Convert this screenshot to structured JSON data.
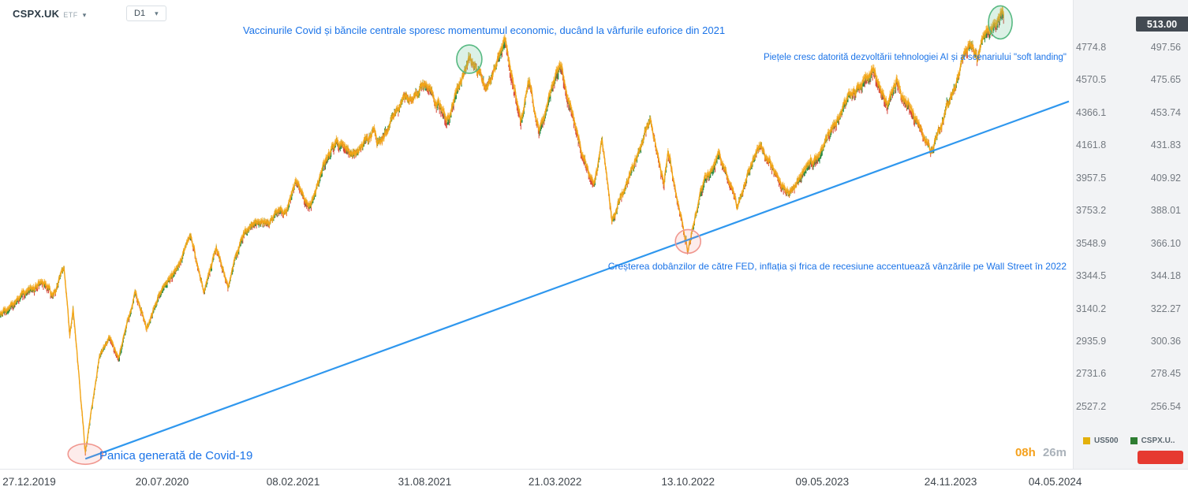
{
  "header": {
    "symbol": "CSPX.UK",
    "instrument_type": "ETF",
    "timeframe": "D1"
  },
  "annotations": {
    "peak_2021": "Vaccinurile Covid și băncile centrale sporesc momentumul economic, ducând la vârfurile euforice din 2021",
    "ai_rally": "Piețele cresc datorită dezvoltării tehnologiei AI și a scenariului \"soft landing\"",
    "fed_2022": "Creșterea dobânzilor de către FED, inflația și frica de recesiune accentuează vânzările pe Wall Street în 2022",
    "covid_panic": "Panica generată de Covid-19"
  },
  "price_axis": {
    "current_price": "513.00",
    "rows": [
      {
        "us500": "4774.8",
        "cspx": "497.56"
      },
      {
        "us500": "4570.5",
        "cspx": "475.65"
      },
      {
        "us500": "4366.1",
        "cspx": "453.74"
      },
      {
        "us500": "4161.8",
        "cspx": "431.83"
      },
      {
        "us500": "3957.5",
        "cspx": "409.92"
      },
      {
        "us500": "3753.2",
        "cspx": "388.01"
      },
      {
        "us500": "3548.9",
        "cspx": "366.10"
      },
      {
        "us500": "3344.5",
        "cspx": "344.18"
      },
      {
        "us500": "3140.2",
        "cspx": "322.27"
      },
      {
        "us500": "2935.9",
        "cspx": "300.36"
      },
      {
        "us500": "2731.6",
        "cspx": "278.45"
      },
      {
        "us500": "2527.2",
        "cspx": "256.54"
      }
    ]
  },
  "footer": {
    "countdown": {
      "hours": "08h",
      "minutes": "26m"
    },
    "legend": [
      {
        "label": "US500",
        "color": "#e3b00b"
      },
      {
        "label": "CSPX.U..",
        "color": "#2e7d32"
      }
    ]
  },
  "chart_data": {
    "type": "line",
    "title": "CSPX.UK daily chart with US500 overlay, 2019-2024",
    "grid": false,
    "legend_position": "bottom-right",
    "x_range": [
      "2019-11-12",
      "2024-05-04"
    ],
    "y_range_us500": [
      1980,
      5070
    ],
    "x_tick_labels": [
      "27.12.2019",
      "20.07.2020",
      "08.02.2021",
      "31.08.2021",
      "21.03.2022",
      "13.10.2022",
      "09.05.2023",
      "24.11.2023",
      "04.05.2024"
    ],
    "y_ticks_us500": [
      4774.8,
      4570.5,
      4366.1,
      4161.8,
      3957.5,
      3753.2,
      3548.9,
      3344.5,
      3140.2,
      2935.9,
      2731.6,
      2527.2
    ],
    "y_ticks_cspx": [
      497.56,
      475.65,
      453.74,
      431.83,
      409.92,
      388.01,
      366.1,
      344.18,
      322.27,
      300.36,
      278.45,
      256.54
    ],
    "series": [
      {
        "name": "US500",
        "color": "#f2a516",
        "anchors": [
          [
            "2019-11-12",
            3092
          ],
          [
            "2019-12-27",
            3240
          ],
          [
            "2020-01-17",
            3330
          ],
          [
            "2020-01-31",
            3226
          ],
          [
            "2020-02-19",
            3393
          ],
          [
            "2020-02-28",
            2954
          ],
          [
            "2020-03-04",
            3130
          ],
          [
            "2020-03-23",
            2237
          ],
          [
            "2020-04-14",
            2846
          ],
          [
            "2020-04-29",
            2940
          ],
          [
            "2020-05-13",
            2820
          ],
          [
            "2020-06-08",
            3232
          ],
          [
            "2020-06-26",
            3009
          ],
          [
            "2020-07-20",
            3252
          ],
          [
            "2020-08-10",
            3360
          ],
          [
            "2020-09-02",
            3580
          ],
          [
            "2020-09-23",
            3237
          ],
          [
            "2020-10-12",
            3534
          ],
          [
            "2020-10-30",
            3270
          ],
          [
            "2020-11-27",
            3638
          ],
          [
            "2020-12-21",
            3690
          ],
          [
            "2021-01-29",
            3714
          ],
          [
            "2021-02-12",
            3935
          ],
          [
            "2021-03-04",
            3768
          ],
          [
            "2021-04-16",
            4185
          ],
          [
            "2021-05-12",
            4063
          ],
          [
            "2021-06-14",
            4255
          ],
          [
            "2021-06-18",
            4166
          ],
          [
            "2021-07-26",
            4422
          ],
          [
            "2021-09-02",
            4537
          ],
          [
            "2021-10-04",
            4300
          ],
          [
            "2021-11-08",
            4702
          ],
          [
            "2021-12-03",
            4538
          ],
          [
            "2022-01-03",
            4797
          ],
          [
            "2022-01-27",
            4327
          ],
          [
            "2022-02-09",
            4587
          ],
          [
            "2022-02-24",
            4225
          ],
          [
            "2022-03-29",
            4631
          ],
          [
            "2022-05-02",
            4130
          ],
          [
            "2022-05-20",
            3901
          ],
          [
            "2022-06-02",
            4177
          ],
          [
            "2022-06-17",
            3675
          ],
          [
            "2022-08-16",
            4305
          ],
          [
            "2022-09-06",
            3908
          ],
          [
            "2022-09-12",
            4110
          ],
          [
            "2022-10-13",
            3492
          ],
          [
            "2022-11-01",
            3856
          ],
          [
            "2022-11-30",
            4080
          ],
          [
            "2022-12-28",
            3783
          ],
          [
            "2023-02-02",
            4180
          ],
          [
            "2023-03-13",
            3855
          ],
          [
            "2023-05-04",
            4061
          ],
          [
            "2023-06-16",
            4426
          ],
          [
            "2023-07-27",
            4607
          ],
          [
            "2023-08-18",
            4370
          ],
          [
            "2023-09-01",
            4516
          ],
          [
            "2023-10-27",
            4117
          ],
          [
            "2023-12-14",
            4720
          ],
          [
            "2023-12-28",
            4783
          ],
          [
            "2024-01-05",
            4697
          ],
          [
            "2024-01-19",
            4840
          ],
          [
            "2024-02-14",
            4923
          ]
        ]
      },
      {
        "name": "CSPX.UK",
        "up_color": "#268b46",
        "down_color": "#d6483c",
        "scale_ratio_to_us500": 9.597,
        "last_price": 513.0
      }
    ],
    "trendline": {
      "color": "#2f97ee",
      "anchors": [
        [
          "2020-03-23",
          2200
        ],
        [
          "2022-10-13",
          3570
        ]
      ],
      "extend_right": true
    },
    "event_markers": [
      {
        "date": "2020-03-23",
        "value": 2230,
        "label": "covid-crash-low",
        "sentiment": "negative"
      },
      {
        "date": "2021-11-08",
        "value": 4700,
        "label": "euphoric-2021-peak",
        "sentiment": "positive"
      },
      {
        "date": "2022-10-13",
        "value": 3560,
        "label": "2022-bear-market-low",
        "sentiment": "negative"
      },
      {
        "date": "2024-02-09",
        "value": 4930,
        "label": "ai-rally-high",
        "sentiment": "positive"
      }
    ]
  }
}
